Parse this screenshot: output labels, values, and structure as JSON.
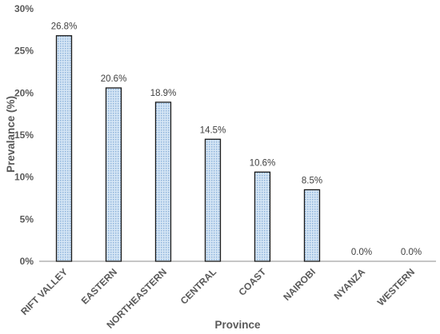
{
  "chart_data": {
    "type": "bar",
    "title": "",
    "xlabel": "Province",
    "ylabel": "Prevalance (%)",
    "ylim": [
      0,
      30
    ],
    "yticks": [
      0,
      5,
      10,
      15,
      20,
      25,
      30
    ],
    "ytick_labels": [
      "0%",
      "5%",
      "10%",
      "15%",
      "20%",
      "25%",
      "30%"
    ],
    "grid": false,
    "legend": "none",
    "categories": [
      "RIFT VALLEY",
      "EASTERN",
      "NORTHEASTERN",
      "CENTRAL",
      "COAST",
      "NAIROBI",
      "NYANZA",
      "WESTERN"
    ],
    "values": [
      26.8,
      20.6,
      18.9,
      14.5,
      10.6,
      8.5,
      0.0,
      0.0
    ],
    "data_labels": [
      "26.8%",
      "20.6%",
      "18.9%",
      "14.5%",
      "10.6%",
      "8.5%",
      "0.0%",
      "0.0%"
    ],
    "bar_fill": "#d6e6f5",
    "bar_pattern": "#8fb4dc",
    "bar_stroke": "#1a1a1a",
    "axis_color": "#8c8c8c"
  }
}
